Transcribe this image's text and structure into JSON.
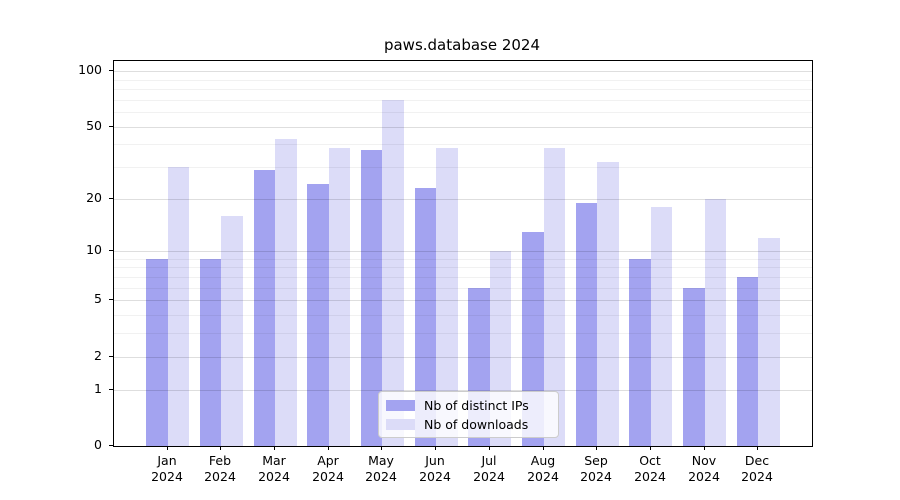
{
  "chart_data": {
    "type": "bar",
    "title": "paws.database 2024",
    "categories": [
      "Jan 2024",
      "Feb 2024",
      "Mar 2024",
      "Apr 2024",
      "May 2024",
      "Jun 2024",
      "Jul 2024",
      "Aug 2024",
      "Sep 2024",
      "Oct 2024",
      "Nov 2024",
      "Dec 2024"
    ],
    "x_months": [
      "Jan",
      "Feb",
      "Mar",
      "Apr",
      "May",
      "Jun",
      "Jul",
      "Aug",
      "Sep",
      "Oct",
      "Nov",
      "Dec"
    ],
    "x_year": "2024",
    "series": [
      {
        "name": "Nb of distinct IPs",
        "color": "#a3a3f0",
        "values": [
          9,
          9,
          29,
          24,
          37,
          23,
          6,
          13,
          19,
          9,
          6,
          7
        ]
      },
      {
        "name": "Nb of downloads",
        "color": "#dcdcf8",
        "values": [
          30,
          16,
          43,
          38,
          70,
          38,
          10,
          38,
          32,
          18,
          20,
          12
        ]
      }
    ],
    "yscale": "log1p",
    "ylim": [
      0,
      113.3
    ],
    "y_major_ticks": [
      0,
      1,
      2,
      5,
      10,
      20,
      50,
      100
    ],
    "y_minor_ticks": [
      3,
      4,
      6,
      7,
      8,
      9,
      30,
      40,
      60,
      70,
      80,
      90
    ],
    "grid": true,
    "legend_position": "lower center",
    "background": "#ffffff",
    "major_grid_color": "#dddddd",
    "minor_grid_color": "#f1f1f1"
  }
}
